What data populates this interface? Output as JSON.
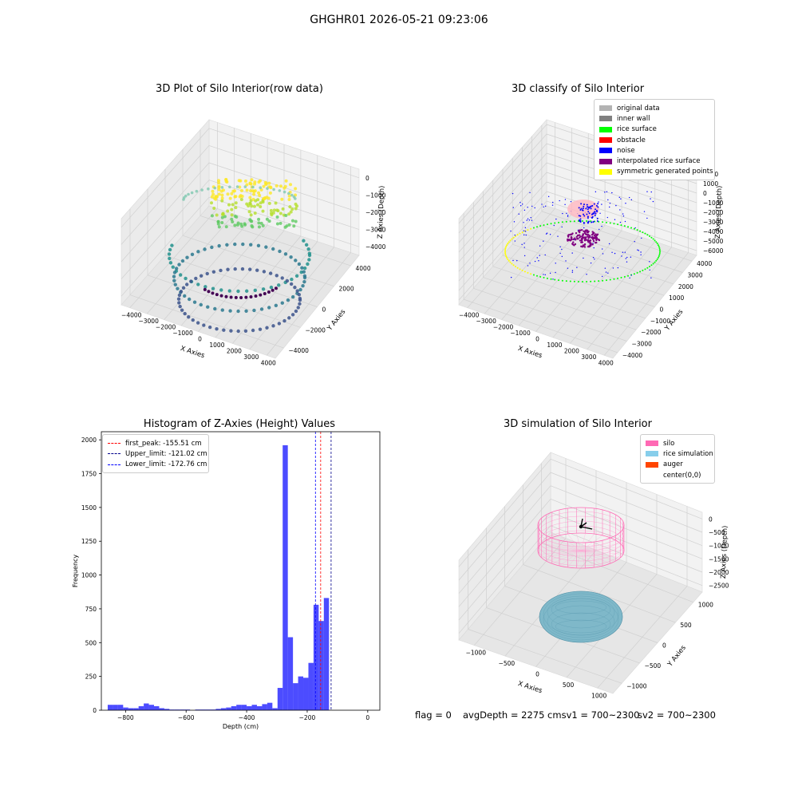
{
  "suptitle": "GHGHR01 2026-05-21 09:23:06",
  "panels": {
    "raw": {
      "title": "3D Plot of Silo Interior(row data)",
      "xlabel": "X Axies",
      "ylabel": "Y Axies",
      "zlabel": "Z Axies (Depth)",
      "xticks": [
        "−4000",
        "−3000",
        "−2000",
        "−1000",
        "0",
        "1000",
        "2000",
        "3000",
        "4000"
      ],
      "yticks": [
        "−4000",
        "−2000",
        "0",
        "2000",
        "4000"
      ],
      "zticks": [
        "−4000",
        "−3000",
        "−2000",
        "−1000",
        "0"
      ]
    },
    "classify": {
      "title": "3D classify of Silo Interior",
      "xlabel": "X Axies",
      "ylabel": "Y Axies",
      "zlabel": "Z Axies (Depth)",
      "xticks": [
        "−4000",
        "−3000",
        "−2000",
        "−1000",
        "0",
        "1000",
        "2000",
        "3000",
        "4000"
      ],
      "yticks": [
        "−4000",
        "−3000",
        "−2000",
        "−1000",
        "0",
        "1000",
        "2000",
        "3000",
        "4000"
      ],
      "zticks": [
        "−6000",
        "−5000",
        "−4000",
        "−3000",
        "−2000",
        "−1000",
        "0",
        "1000",
        "2000"
      ],
      "legend": [
        {
          "label": "original data",
          "color": "#b3b3b3"
        },
        {
          "label": "inner wall",
          "color": "#808080"
        },
        {
          "label": "rice surface",
          "color": "#00ff00"
        },
        {
          "label": "obstacle",
          "color": "#ff0000"
        },
        {
          "label": "noise",
          "color": "#0000ff"
        },
        {
          "label": "interpolated rice surface",
          "color": "#800080"
        },
        {
          "label": "symmetric generated points",
          "color": "#ffff00"
        }
      ]
    },
    "histogram": {
      "title": "Histogram of Z-Axies (Height) Values",
      "xlabel": "Depth (cm)",
      "ylabel": "Frequency",
      "legend": [
        {
          "label": "first_peak: -155.51 cm",
          "color": "#ff0000"
        },
        {
          "label": "Upper_limit: -121.02 cm",
          "color": "#00008b"
        },
        {
          "label": "Lower_limit: -172.76 cm",
          "color": "#0000ff"
        }
      ]
    },
    "simulation": {
      "title": "3D simulation of Silo Interior",
      "xlabel": "X Axies",
      "ylabel": "Y Axies",
      "zlabel": "Z Axies (Depth)",
      "xticks": [
        "−1000",
        "−500",
        "0",
        "500",
        "1000"
      ],
      "yticks": [
        "−1000",
        "−500",
        "0",
        "500",
        "1000"
      ],
      "zticks": [
        "−2500",
        "−2000",
        "−1500",
        "−1000",
        "−500",
        "0"
      ],
      "legend": [
        {
          "label": "silo",
          "color": "#ff69b4"
        },
        {
          "label": "rice simulation",
          "color": "#87ceeb"
        },
        {
          "label": "auger",
          "color": "#ff4500"
        },
        {
          "label": "center(0,0)",
          "color": "#ffffff"
        }
      ]
    }
  },
  "footer": {
    "flag": "flag = 0",
    "avg": "avgDepth = 2275 cmsv1 = 700~2300",
    "sv2": "sv2 = 700~2300"
  },
  "chart_data": [
    {
      "type": "scatter",
      "title": "3D Plot of Silo Interior(row data)",
      "xlabel": "X Axies",
      "ylabel": "Y Axies",
      "zlabel": "Z Axies (Depth)",
      "xlim": [
        -4000,
        4000
      ],
      "ylim": [
        -4000,
        4000
      ],
      "zlim": [
        -4500,
        0
      ],
      "colormap": "viridis"
    },
    {
      "type": "scatter",
      "title": "3D classify of Silo Interior",
      "xlabel": "X Axies",
      "ylabel": "Y Axies",
      "zlabel": "Z Axies (Depth)",
      "xlim": [
        -4000,
        4000
      ],
      "ylim": [
        -4000,
        4000
      ],
      "zlim": [
        -6000,
        2000
      ],
      "legend_position": "top-right",
      "series": [
        {
          "name": "original data"
        },
        {
          "name": "inner wall"
        },
        {
          "name": "rice surface"
        },
        {
          "name": "obstacle"
        },
        {
          "name": "noise"
        },
        {
          "name": "interpolated rice surface"
        },
        {
          "name": "symmetric generated points"
        }
      ]
    },
    {
      "type": "bar",
      "title": "Histogram of Z-Axies (Height) Values",
      "xlabel": "Depth (cm)",
      "ylabel": "Frequency",
      "xlim": [
        -880,
        40
      ],
      "ylim": [
        0,
        2060
      ],
      "xticks": [
        -800,
        -600,
        -400,
        -200,
        0
      ],
      "yticks": [
        0,
        250,
        500,
        750,
        1000,
        1250,
        1500,
        1750,
        2000
      ],
      "bin_width": 17,
      "bin_start": -859,
      "values": [
        40,
        40,
        40,
        20,
        15,
        15,
        30,
        50,
        40,
        30,
        15,
        10,
        5,
        5,
        5,
        5,
        0,
        5,
        5,
        5,
        5,
        10,
        15,
        20,
        30,
        40,
        40,
        30,
        40,
        30,
        45,
        55,
        15,
        165,
        1960,
        540,
        200,
        250,
        240,
        350,
        780,
        660,
        830
      ],
      "lines": [
        {
          "name": "first_peak: -155.51 cm",
          "x": -155.51,
          "color": "#ff0000"
        },
        {
          "name": "Upper_limit: -121.02 cm",
          "x": -121.02,
          "color": "#00008b"
        },
        {
          "name": "Lower_limit: -172.76 cm",
          "x": -172.76,
          "color": "#0000ff"
        }
      ],
      "legend_position": "top-left",
      "bar_color": "#0000ff"
    },
    {
      "type": "scatter",
      "title": "3D simulation of Silo Interior",
      "xlabel": "X Axies",
      "ylabel": "Y Axies",
      "zlabel": "Z Axies (Depth)",
      "xlim": [
        -1300,
        1300
      ],
      "ylim": [
        -1300,
        1300
      ],
      "zlim": [
        -2600,
        300
      ],
      "legend_position": "top-right",
      "series": [
        {
          "name": "silo"
        },
        {
          "name": "rice simulation"
        },
        {
          "name": "auger"
        },
        {
          "name": "center(0,0)"
        }
      ]
    }
  ]
}
